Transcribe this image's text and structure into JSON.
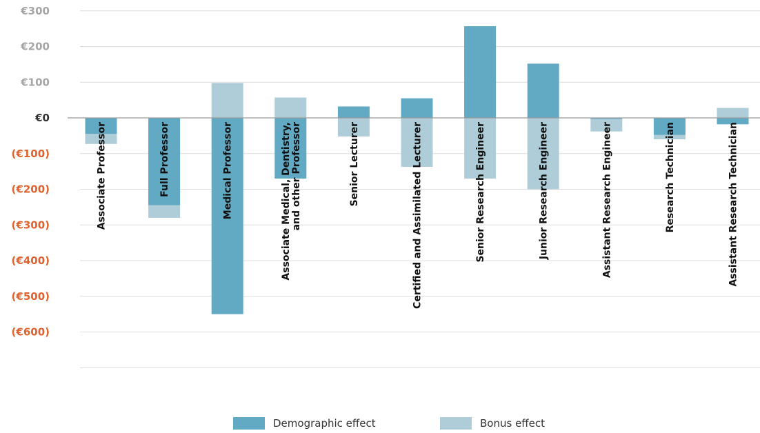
{
  "chart_data": {
    "type": "bar",
    "stacked": true,
    "categories": [
      "Associate Professor",
      "Full Professor",
      "Medical Professor",
      "Associate Medical, Dentistry,\nand other Professor",
      "Senior Lecturer",
      "Certified and Assimilated Lecturer",
      "Senior Research Engineer",
      "Junior Research Engineer",
      "Assistant Research Engineer",
      "Research Technician",
      "Assistant Research Technician"
    ],
    "series": [
      {
        "name": "Demographic effect",
        "values": [
          -45,
          -245,
          -550,
          -170,
          32,
          55,
          257,
          152,
          -3,
          -48,
          -18
        ]
      },
      {
        "name": "Bonus effect",
        "values": [
          -28,
          -35,
          98,
          57,
          -52,
          -137,
          -170,
          -200,
          -35,
          -12,
          28
        ]
      }
    ],
    "ylim": [
      -700,
      300
    ],
    "yticks": [
      300,
      200,
      100,
      0,
      -100,
      -200,
      -300,
      -400,
      -500,
      -600
    ],
    "ytick_labels": [
      "€300",
      "€200",
      "€100",
      "€0",
      "(€100)",
      "(€200)",
      "(€300)",
      "(€400)",
      "(€500)",
      "(€600)"
    ],
    "grid": true,
    "legend_position": "bottom-center",
    "colors": {
      "demographic": "#62a9c3",
      "bonus": "#afcdd9",
      "positive_tick": "#a6a6a6",
      "zero_tick": "#333333",
      "negative_tick": "#e0622f"
    }
  }
}
